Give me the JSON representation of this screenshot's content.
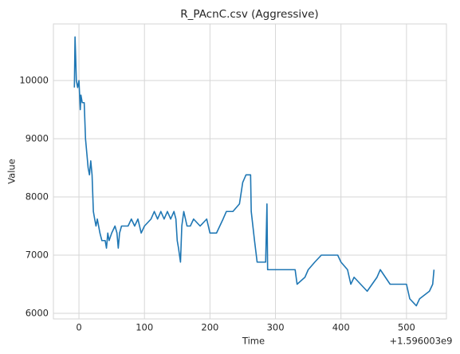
{
  "chart_data": {
    "type": "line",
    "title": "R_PAcnC.csv (Aggressive)",
    "xlabel": "Time",
    "ylabel": "Value",
    "x_offset_label": "+1.596003e9",
    "x": [
      -7,
      -6,
      -5,
      -4,
      -2,
      0,
      2,
      3,
      5,
      8,
      10,
      12,
      14,
      16,
      18,
      20,
      22,
      24,
      26,
      28,
      30,
      32,
      35,
      40,
      42,
      44,
      46,
      50,
      55,
      58,
      60,
      62,
      65,
      75,
      80,
      85,
      90,
      95,
      100,
      110,
      115,
      120,
      125,
      130,
      135,
      140,
      145,
      148,
      150,
      152,
      155,
      157,
      160,
      165,
      170,
      175,
      185,
      195,
      200,
      210,
      215,
      220,
      225,
      235,
      245,
      250,
      255,
      262,
      263,
      268,
      272,
      285,
      287,
      288,
      330,
      333,
      345,
      350,
      360,
      370,
      395,
      400,
      410,
      415,
      420,
      430,
      440,
      455,
      460,
      475,
      500,
      505,
      515,
      520,
      535,
      540,
      542
    ],
    "series": [
      {
        "name": "Value",
        "color": "#1f77b4",
        "values": [
          9880,
          10750,
          10400,
          10000,
          9880,
          10000,
          9500,
          9750,
          9620,
          9620,
          9000,
          8750,
          8500,
          8380,
          8620,
          8380,
          7750,
          7620,
          7500,
          7620,
          7500,
          7380,
          7250,
          7250,
          7120,
          7380,
          7250,
          7380,
          7500,
          7380,
          7120,
          7380,
          7500,
          7500,
          7620,
          7500,
          7620,
          7380,
          7500,
          7620,
          7750,
          7620,
          7750,
          7620,
          7750,
          7620,
          7750,
          7620,
          7250,
          7120,
          6880,
          7500,
          7750,
          7500,
          7500,
          7620,
          7500,
          7620,
          7380,
          7380,
          7500,
          7620,
          7750,
          7750,
          7880,
          8250,
          8380,
          8380,
          7750,
          7250,
          6880,
          6880,
          7880,
          6750,
          6750,
          6500,
          6620,
          6750,
          6880,
          7000,
          7000,
          6880,
          6750,
          6500,
          6620,
          6500,
          6380,
          6620,
          6750,
          6500,
          6500,
          6250,
          6130,
          6250,
          6380,
          6500,
          6750
        ]
      }
    ],
    "xlim": [
      -39,
      561
    ],
    "ylim": [
      5904,
      10973
    ],
    "xticks": [
      0,
      100,
      200,
      300,
      400,
      500
    ],
    "yticks": [
      6000,
      7000,
      8000,
      9000,
      10000
    ],
    "grid": true
  }
}
